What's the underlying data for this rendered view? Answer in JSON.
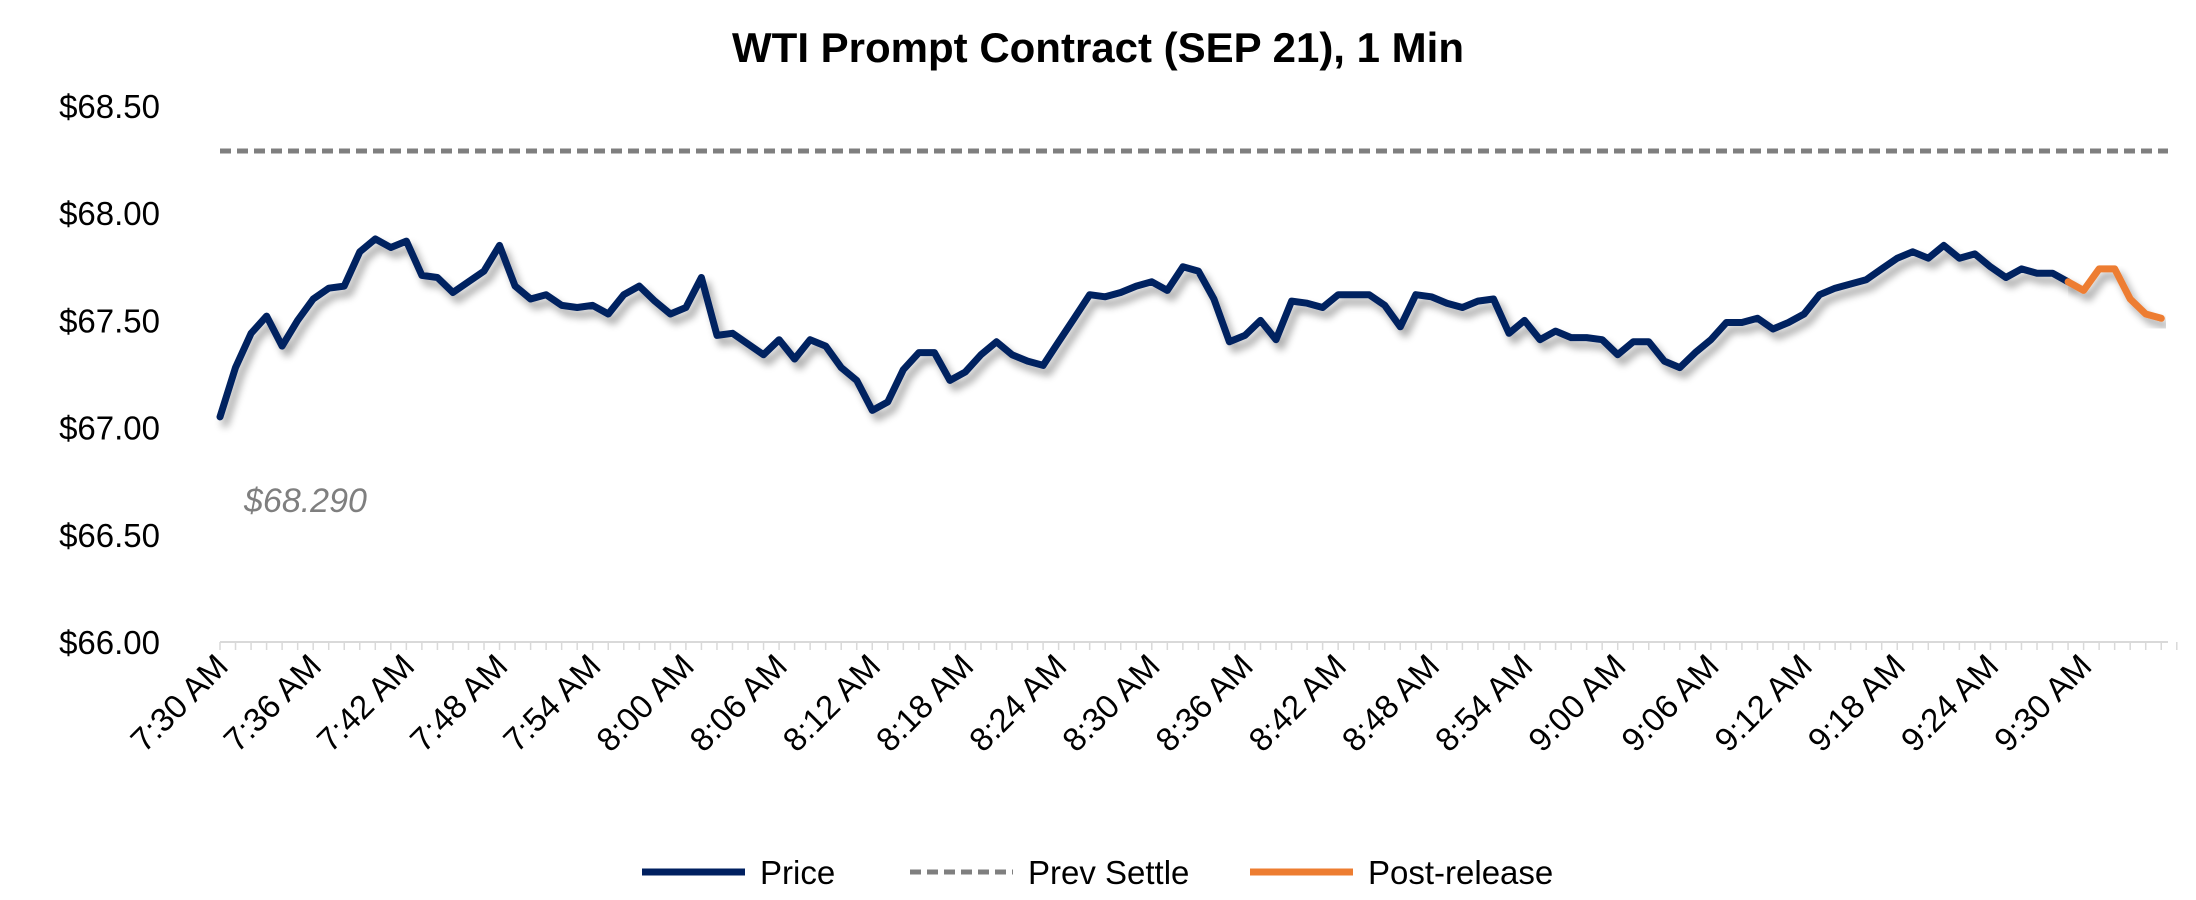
{
  "chart_data": {
    "type": "line",
    "title": "WTI Prompt Contract (SEP 21), 1 Min",
    "xlabel": "",
    "ylabel": "",
    "ylim": [
      66.0,
      68.5
    ],
    "y_ticks": [
      "$66.00",
      "$66.50",
      "$67.00",
      "$67.50",
      "$68.00",
      "$68.50"
    ],
    "y_tick_values": [
      66.0,
      66.5,
      67.0,
      67.5,
      68.0,
      68.5
    ],
    "x_start": "7:30 AM",
    "x_end": "9:35 AM",
    "x_interval_minutes": 1,
    "x_ticks": [
      "7:30 AM",
      "7:36 AM",
      "7:42 AM",
      "7:48 AM",
      "7:54 AM",
      "8:00 AM",
      "8:06 AM",
      "8:12 AM",
      "8:18 AM",
      "8:24 AM",
      "8:30 AM",
      "8:36 AM",
      "8:42 AM",
      "8:48 AM",
      "8:54 AM",
      "9:00 AM",
      "9:06 AM",
      "9:12 AM",
      "9:18 AM",
      "9:24 AM",
      "9:30 AM"
    ],
    "x_tick_step_minutes": 6,
    "grid": false,
    "legend_position": "bottom",
    "annotation": "$68.290",
    "series": [
      {
        "name": "Price",
        "color": "#002060",
        "start_minute": 0,
        "values": [
          67.05,
          67.28,
          67.44,
          67.52,
          67.38,
          67.5,
          67.6,
          67.65,
          67.66,
          67.82,
          67.88,
          67.84,
          67.87,
          67.71,
          67.7,
          67.63,
          67.68,
          67.73,
          67.85,
          67.66,
          67.6,
          67.62,
          67.57,
          67.56,
          67.57,
          67.53,
          67.62,
          67.66,
          67.59,
          67.53,
          67.56,
          67.7,
          67.43,
          67.44,
          67.39,
          67.34,
          67.41,
          67.32,
          67.41,
          67.38,
          67.28,
          67.22,
          67.08,
          67.12,
          67.27,
          67.35,
          67.35,
          67.22,
          67.26,
          67.34,
          67.4,
          67.34,
          67.31,
          67.29,
          67.4,
          67.51,
          67.62,
          67.61,
          67.63,
          67.66,
          67.68,
          67.64,
          67.75,
          67.73,
          67.6,
          67.4,
          67.43,
          67.5,
          67.41,
          67.59,
          67.58,
          67.56,
          67.62,
          67.62,
          67.62,
          67.57,
          67.47,
          67.62,
          67.61,
          67.58,
          67.56,
          67.59,
          67.6,
          67.44,
          67.5,
          67.41,
          67.45,
          67.42,
          67.42,
          67.41,
          67.34,
          67.4,
          67.4,
          67.31,
          67.28,
          67.35,
          67.41,
          67.49,
          67.49,
          67.51,
          67.46,
          67.49,
          67.53,
          67.62,
          67.65,
          67.67,
          67.69,
          67.74,
          67.79,
          67.82,
          67.79,
          67.85,
          67.79,
          67.81,
          67.75,
          67.7,
          67.74,
          67.72,
          67.72,
          67.68
        ]
      },
      {
        "name": "Prev Settle",
        "color": "#7f7f7f",
        "constant": 68.29
      },
      {
        "name": "Post-release",
        "color": "#ed7d31",
        "start_minute": 119,
        "values": [
          67.68,
          67.64,
          67.74,
          67.74,
          67.6,
          67.53,
          67.51
        ]
      }
    ]
  }
}
